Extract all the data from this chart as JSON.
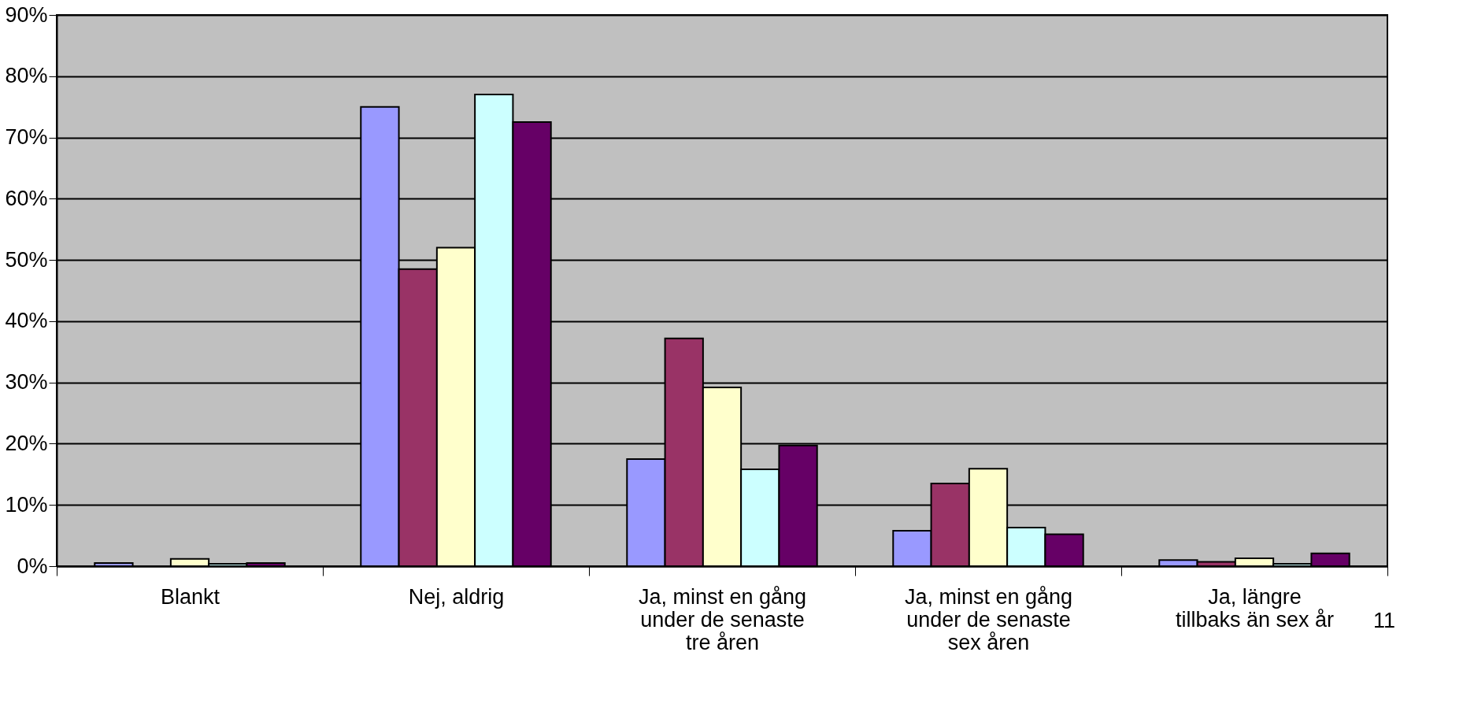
{
  "chart_data": {
    "type": "bar",
    "categories": [
      "Blankt",
      "Nej, aldrig",
      "Ja, minst en gång under de senaste tre åren",
      "Ja, minst en gång under de senaste sex åren",
      "Ja, längre tillbaks än sex år"
    ],
    "series": [
      {
        "color": "#9999ff",
        "values": [
          0.5,
          75,
          17.5,
          5.8,
          1.0
        ]
      },
      {
        "color": "#993366",
        "values": [
          null,
          48.5,
          37.2,
          13.5,
          0.7
        ]
      },
      {
        "color": "#ffffcc",
        "values": [
          1.2,
          52,
          29.2,
          15.9,
          1.3
        ]
      },
      {
        "color": "#ccffff",
        "values": [
          0.4,
          77,
          15.8,
          6.3,
          0.4
        ]
      },
      {
        "color": "#660066",
        "values": [
          0.5,
          72.5,
          19.7,
          5.2,
          2.1
        ]
      }
    ],
    "ylim": [
      0,
      90
    ],
    "yticks": [
      {
        "value": 0,
        "label": "0%"
      },
      {
        "value": 10,
        "label": "10%"
      },
      {
        "value": 20,
        "label": "20%"
      },
      {
        "value": 30,
        "label": "30%"
      },
      {
        "value": 40,
        "label": "40%"
      },
      {
        "value": 50,
        "label": "50%"
      },
      {
        "value": 60,
        "label": "60%"
      },
      {
        "value": 70,
        "label": "70%"
      },
      {
        "value": 80,
        "label": "80%"
      },
      {
        "value": 90,
        "label": "90%"
      }
    ],
    "grid": "y",
    "legend": false,
    "annotations": [
      "11"
    ]
  }
}
